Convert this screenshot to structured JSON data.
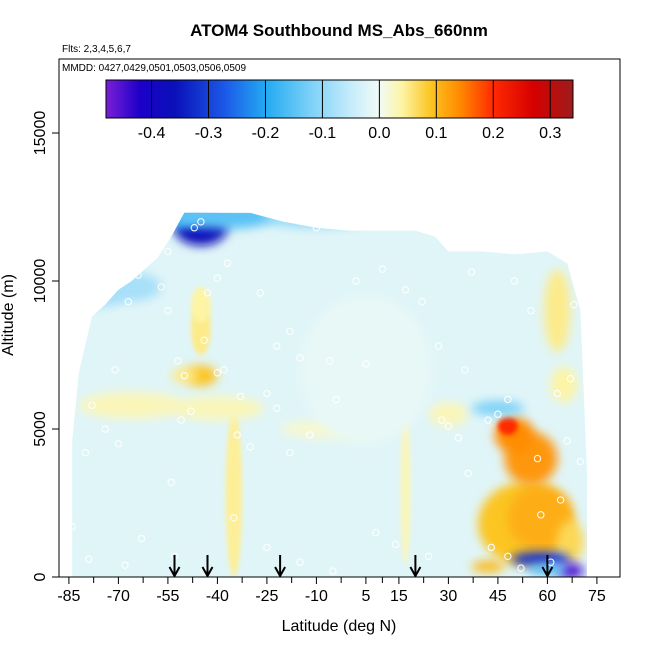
{
  "chart_data": {
    "type": "heatmap",
    "title": "ATOM4 Southbound MS_Abs_660nm",
    "subtitle_flights": "Flts: 2,3,4,5,6,7",
    "subtitle_dates": "MMDD: 0427,0429,0501,0503,0506,0509",
    "xlabel": "Latitude (deg N)",
    "ylabel": "Altitude (m)",
    "xlim": [
      -88,
      82
    ],
    "ylim": [
      0,
      17500
    ],
    "x_ticks": [
      -85,
      -70,
      -55,
      -40,
      -25,
      -10,
      5,
      15,
      30,
      45,
      60,
      75
    ],
    "x_tick_labels": [
      "-85",
      "-70",
      "-55",
      "-40",
      "-25",
      "-10",
      "5",
      "15",
      "30",
      "45",
      "60",
      "75"
    ],
    "y_ticks": [
      0,
      5000,
      10000,
      15000
    ],
    "y_tick_labels": [
      "0",
      "5000",
      "10000",
      "15000"
    ],
    "colorbar": {
      "range": [
        -0.48,
        0.34
      ],
      "ticks": [
        -0.4,
        -0.3,
        -0.2,
        -0.1,
        0.0,
        0.1,
        0.2,
        0.3
      ],
      "tick_labels": [
        "-0.4",
        "-0.3",
        "-0.2",
        "-0.1",
        "0.0",
        "0.1",
        "0.2",
        "0.3"
      ],
      "color_stops": [
        {
          "v": -0.48,
          "c": "#7a1fd6"
        },
        {
          "v": -0.42,
          "c": "#1c00c8"
        },
        {
          "v": -0.36,
          "c": "#0a10b8"
        },
        {
          "v": -0.27,
          "c": "#1c5ae8"
        },
        {
          "v": -0.2,
          "c": "#22aaf2"
        },
        {
          "v": -0.12,
          "c": "#7dd1f7"
        },
        {
          "v": -0.05,
          "c": "#c6ecfb"
        },
        {
          "v": 0.0,
          "c": "#f1fbf6"
        },
        {
          "v": 0.04,
          "c": "#fdf4a4"
        },
        {
          "v": 0.09,
          "c": "#fcc522"
        },
        {
          "v": 0.14,
          "c": "#ff8c00"
        },
        {
          "v": 0.2,
          "c": "#ff2a00"
        },
        {
          "v": 0.27,
          "c": "#d60000"
        },
        {
          "v": 0.34,
          "c": "#9e1c1c"
        }
      ]
    },
    "arrow_latitudes": [
      -53,
      -43,
      -21,
      20,
      60
    ],
    "background_value": -0.02,
    "columns": [
      {
        "lat": -84,
        "top": 4600
      },
      {
        "lat": -82,
        "top": 6900
      },
      {
        "lat": -78,
        "top": 8800
      },
      {
        "lat": -74,
        "top": 9200
      },
      {
        "lat": -70,
        "top": 9700
      },
      {
        "lat": -66,
        "top": 10000
      },
      {
        "lat": -62,
        "top": 10400
      },
      {
        "lat": -58,
        "top": 10800
      },
      {
        "lat": -54,
        "top": 11500
      },
      {
        "lat": -50,
        "top": 12300
      },
      {
        "lat": -42,
        "top": 12300
      },
      {
        "lat": -30,
        "top": 12300
      },
      {
        "lat": -20,
        "top": 12000
      },
      {
        "lat": -10,
        "top": 11800
      },
      {
        "lat": 0,
        "top": 11700
      },
      {
        "lat": 10,
        "top": 11700
      },
      {
        "lat": 20,
        "top": 11700
      },
      {
        "lat": 26,
        "top": 11500
      },
      {
        "lat": 30,
        "top": 11000
      },
      {
        "lat": 40,
        "top": 11000
      },
      {
        "lat": 50,
        "top": 10900
      },
      {
        "lat": 60,
        "top": 11000
      },
      {
        "lat": 66,
        "top": 10600
      },
      {
        "lat": 70,
        "top": 9000
      },
      {
        "lat": 72,
        "top": 3500
      }
    ],
    "anomalies": [
      {
        "lat": -45,
        "alt": 11800,
        "rx": 8,
        "ry": 600,
        "value": -0.36
      },
      {
        "lat": -52,
        "alt": 12200,
        "rx": 8,
        "ry": 400,
        "value": -0.18
      },
      {
        "lat": -38,
        "alt": 12200,
        "rx": 16,
        "ry": 450,
        "value": -0.15
      },
      {
        "lat": -10,
        "alt": 12100,
        "rx": 16,
        "ry": 300,
        "value": -0.1
      },
      {
        "lat": -78,
        "alt": 9500,
        "rx": 10,
        "ry": 400,
        "value": -0.08
      },
      {
        "lat": -67,
        "alt": 9800,
        "rx": 10,
        "ry": 500,
        "value": -0.08
      },
      {
        "lat": -45,
        "alt": 6800,
        "rx": 5,
        "ry": 350,
        "value": 0.09
      },
      {
        "lat": -50,
        "alt": 6800,
        "rx": 4,
        "ry": 250,
        "value": 0.05
      },
      {
        "lat": -45,
        "alt": 8400,
        "rx": 3,
        "ry": 900,
        "value": 0.05
      },
      {
        "lat": -45,
        "alt": 9200,
        "rx": 3,
        "ry": 600,
        "value": 0.04
      },
      {
        "lat": -35,
        "alt": 2800,
        "rx": 2.5,
        "ry": 2800,
        "value": 0.045
      },
      {
        "lat": 17,
        "alt": 3000,
        "rx": 1.5,
        "ry": 2600,
        "value": 0.03
      },
      {
        "lat": -66,
        "alt": 5800,
        "rx": 16,
        "ry": 450,
        "value": 0.03
      },
      {
        "lat": -40,
        "alt": 5700,
        "rx": 14,
        "ry": 400,
        "value": 0.03
      },
      {
        "lat": -5,
        "alt": 5000,
        "rx": 16,
        "ry": 300,
        "value": 0.02
      },
      {
        "lat": 30,
        "alt": 5500,
        "rx": 6,
        "ry": 400,
        "value": 0.03
      },
      {
        "lat": 53,
        "alt": 1800,
        "rx": 14,
        "ry": 1400,
        "value": 0.09
      },
      {
        "lat": 58,
        "alt": 2000,
        "rx": 10,
        "ry": 1100,
        "value": 0.11
      },
      {
        "lat": 55,
        "alt": 4000,
        "rx": 8,
        "ry": 900,
        "value": 0.13
      },
      {
        "lat": 50,
        "alt": 4800,
        "rx": 6,
        "ry": 600,
        "value": 0.14
      },
      {
        "lat": 48,
        "alt": 5100,
        "rx": 3,
        "ry": 300,
        "value": 0.2
      },
      {
        "lat": 45,
        "alt": 5700,
        "rx": 8,
        "ry": 250,
        "value": -0.12
      },
      {
        "lat": 63,
        "alt": 9000,
        "rx": 4,
        "ry": 1400,
        "value": 0.05
      },
      {
        "lat": 65,
        "alt": 6500,
        "rx": 4,
        "ry": 600,
        "value": 0.04
      },
      {
        "lat": 67,
        "alt": 1200,
        "rx": 4,
        "ry": 700,
        "value": 0.07
      },
      {
        "lat": 58,
        "alt": 600,
        "rx": 9,
        "ry": 250,
        "value": -0.32
      },
      {
        "lat": 67,
        "alt": 200,
        "rx": 4,
        "ry": 250,
        "value": -0.45
      },
      {
        "lat": 42,
        "alt": 350,
        "rx": 5,
        "ry": 200,
        "value": 0.1
      },
      {
        "lat": 60,
        "alt": 250,
        "rx": 6,
        "ry": 200,
        "value": -0.15
      },
      {
        "lat": 5,
        "alt": 7000,
        "rx": 20,
        "ry": 2500,
        "value": -0.01
      }
    ],
    "sample_points": [
      [
        -84,
        1700
      ],
      [
        -80,
        4200
      ],
      [
        -78,
        5800
      ],
      [
        -74,
        5000
      ],
      [
        -70,
        4500
      ],
      [
        -71,
        7000
      ],
      [
        -67,
        9300
      ],
      [
        -70,
        10300
      ],
      [
        -64,
        10200
      ],
      [
        -63,
        10500
      ],
      [
        -57,
        9800
      ],
      [
        -55,
        11000
      ],
      [
        -54,
        3200
      ],
      [
        -53,
        700
      ],
      [
        -55,
        9000
      ],
      [
        -52,
        7300
      ],
      [
        -50,
        6800
      ],
      [
        -48,
        5600
      ],
      [
        -51,
        5300
      ],
      [
        -47,
        11800
      ],
      [
        -45,
        12000
      ],
      [
        -44,
        8000
      ],
      [
        -43,
        9600
      ],
      [
        -40,
        6900
      ],
      [
        -38,
        7000
      ],
      [
        -40,
        10100
      ],
      [
        -37,
        10600
      ],
      [
        -33,
        6100
      ],
      [
        -34,
        4800
      ],
      [
        -30,
        4400
      ],
      [
        -27,
        9600
      ],
      [
        -25,
        6200
      ],
      [
        -22,
        5700
      ],
      [
        -18,
        4200
      ],
      [
        -22,
        7800
      ],
      [
        -15,
        7400
      ],
      [
        -18,
        8300
      ],
      [
        -12,
        4800
      ],
      [
        -10,
        11800
      ],
      [
        -8,
        12100
      ],
      [
        -6,
        7300
      ],
      [
        -4,
        6000
      ],
      [
        2,
        10000
      ],
      [
        5,
        7200
      ],
      [
        10,
        10400
      ],
      [
        14,
        1100
      ],
      [
        17,
        9700
      ],
      [
        22,
        9300
      ],
      [
        27,
        7800
      ],
      [
        28,
        5300
      ],
      [
        30,
        5100
      ],
      [
        33,
        4700
      ],
      [
        35,
        7000
      ],
      [
        36,
        3500
      ],
      [
        37,
        10300
      ],
      [
        42,
        5300
      ],
      [
        45,
        5500
      ],
      [
        48,
        6000
      ],
      [
        50,
        10000
      ],
      [
        55,
        9000
      ],
      [
        57,
        4000
      ],
      [
        58,
        2100
      ],
      [
        61,
        500
      ],
      [
        63,
        6200
      ],
      [
        64,
        2600
      ],
      [
        66,
        4600
      ],
      [
        67,
        6700
      ],
      [
        68,
        9200
      ],
      [
        69,
        10400
      ],
      [
        70,
        3900
      ],
      [
        43,
        1000
      ],
      [
        48,
        700
      ],
      [
        52,
        300
      ],
      [
        -79,
        600
      ],
      [
        -68,
        400
      ],
      [
        -63,
        1300
      ],
      [
        -44,
        200
      ],
      [
        -35,
        2000
      ],
      [
        -25,
        1000
      ],
      [
        -15,
        500
      ],
      [
        -5,
        200
      ],
      [
        8,
        1500
      ],
      [
        24,
        700
      ]
    ]
  }
}
